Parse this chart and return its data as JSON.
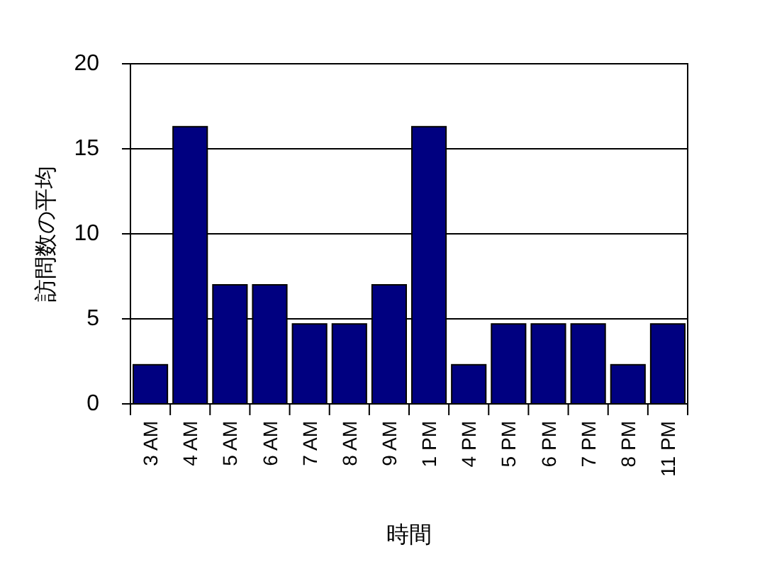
{
  "chart_data": {
    "type": "bar",
    "xlabel": "時間",
    "ylabel": "訪問数の平均",
    "categories": [
      "3 AM",
      "4 AM",
      "5 AM",
      "6 AM",
      "7 AM",
      "8 AM",
      "9 AM",
      "1 PM",
      "4 PM",
      "5 PM",
      "6 PM",
      "7 PM",
      "8 PM",
      "11 PM"
    ],
    "values": [
      2.3,
      16.3,
      7,
      7,
      4.7,
      4.7,
      7,
      16.3,
      2.3,
      4.7,
      4.7,
      4.7,
      2.3,
      4.7
    ],
    "color": "#000080",
    "ylim": [
      0,
      20
    ],
    "yticks": [
      0,
      5,
      10,
      15,
      20
    ],
    "grid": "y"
  }
}
